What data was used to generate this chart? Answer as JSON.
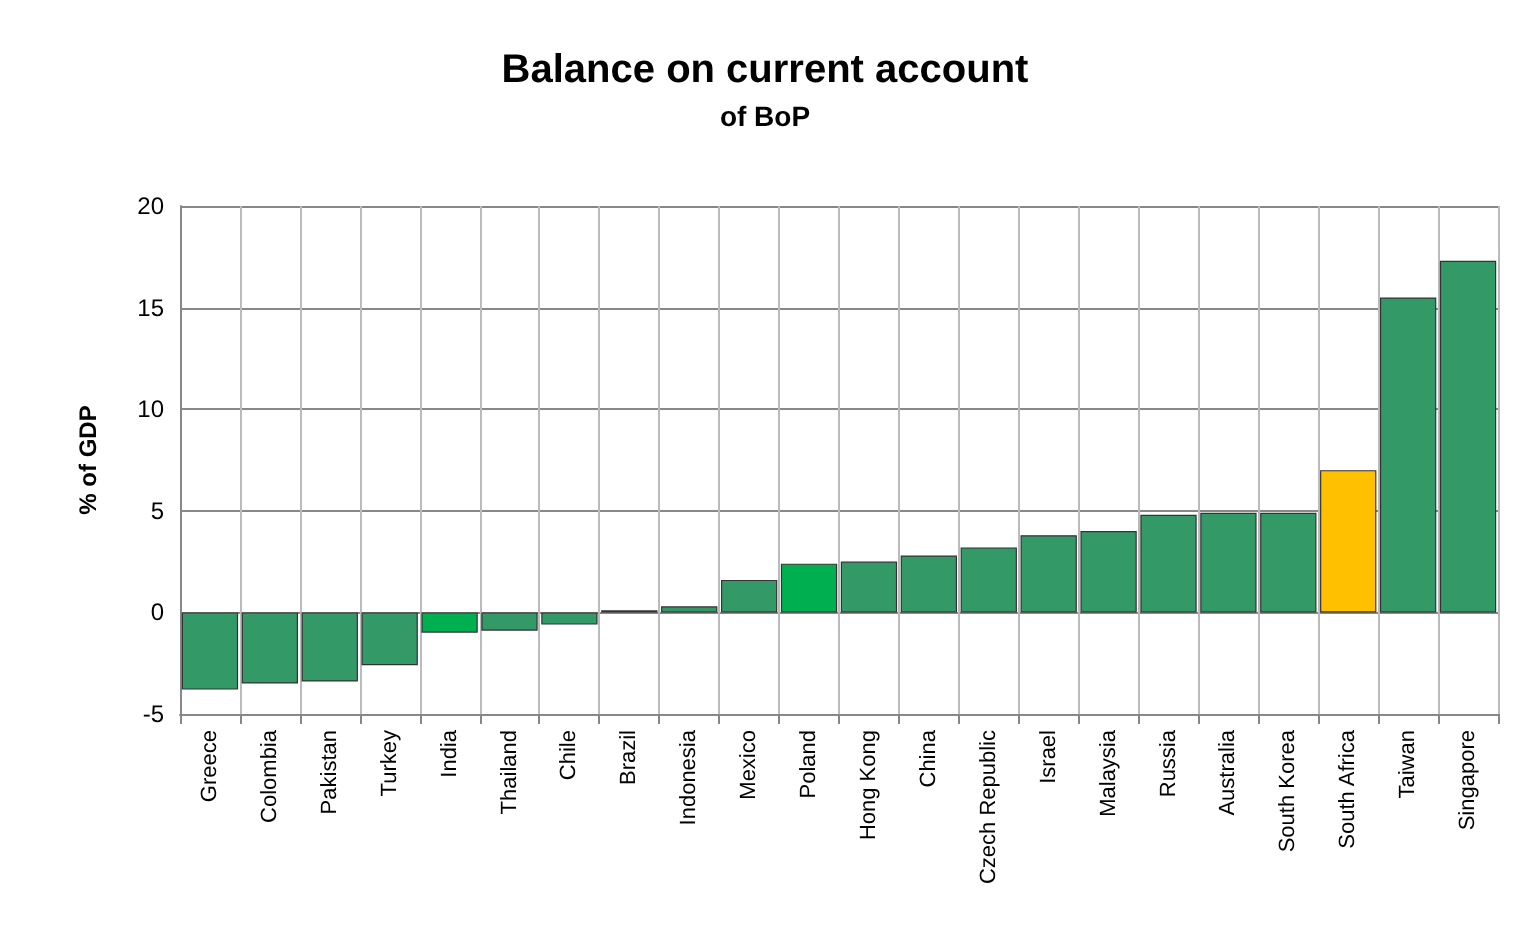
{
  "chart_data": {
    "type": "bar",
    "title": "Balance on current account",
    "subtitle": "of BoP",
    "ylabel": "% of GDP",
    "categories": [
      "Greece",
      "Colombia",
      "Pakistan",
      "Turkey",
      "India",
      "Thailand",
      "Chile",
      "Brazil",
      "Indonesia",
      "Mexico",
      "Poland",
      "Hong Kong",
      "China",
      "Czech Republic",
      "Israel",
      "Malaysia",
      "Russia",
      "Australia",
      "South Korea",
      "South Africa",
      "Taiwan",
      "Singapore"
    ],
    "values": [
      -3.8,
      -3.5,
      -3.4,
      -2.6,
      -1.0,
      -0.9,
      -0.6,
      0.1,
      0.3,
      1.6,
      2.4,
      2.5,
      2.8,
      3.2,
      3.8,
      4.0,
      4.8,
      4.9,
      4.9,
      7.0,
      15.5,
      17.3
    ],
    "colors": [
      "#339966",
      "#339966",
      "#339966",
      "#339966",
      "#00b050",
      "#339966",
      "#339966",
      "#339966",
      "#339966",
      "#339966",
      "#00b050",
      "#339966",
      "#339966",
      "#339966",
      "#339966",
      "#339966",
      "#339966",
      "#339966",
      "#339966",
      "#ffc000",
      "#339966",
      "#339966"
    ],
    "ylim": [
      -5,
      20
    ],
    "yticks": [
      -5,
      0,
      5,
      10,
      15,
      20
    ],
    "grid": true
  }
}
